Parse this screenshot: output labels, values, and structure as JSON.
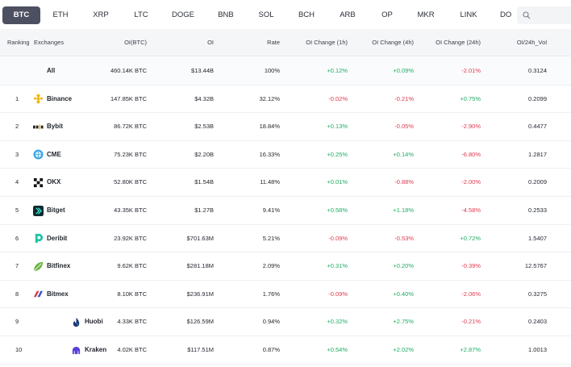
{
  "tabs": [
    {
      "label": "BTC",
      "active": true
    },
    {
      "label": "ETH"
    },
    {
      "label": "XRP"
    },
    {
      "label": "LTC"
    },
    {
      "label": "DOGE"
    },
    {
      "label": "BNB"
    },
    {
      "label": "SOL"
    },
    {
      "label": "BCH"
    },
    {
      "label": "ARB"
    },
    {
      "label": "OP"
    },
    {
      "label": "MKR"
    },
    {
      "label": "LINK"
    },
    {
      "label": "DO"
    }
  ],
  "search": {
    "icon": "search-icon"
  },
  "table": {
    "headers": {
      "ranking": "Ranking",
      "exchanges": "Exchanges",
      "oi_btc": "OI(BTC)",
      "oi": "OI",
      "rate": "Rate",
      "ch1h": "OI Change (1h)",
      "ch4h": "OI Change (4h)",
      "ch24h": "OI Change (24h)",
      "vol": "OI/24h_Vol"
    },
    "rows": [
      {
        "rank": "",
        "name": "All",
        "icon": "",
        "oi_btc": "460.14K BTC",
        "oi": "$13.44B",
        "rate": "100%",
        "ch1h": "+0.12%",
        "ch4h": "+0.09%",
        "ch24h": "-2.01%",
        "vol": "0.3124"
      },
      {
        "rank": "1",
        "name": "Binance",
        "icon": "binance-logo-icon",
        "oi_btc": "147.85K BTC",
        "oi": "$4.32B",
        "rate": "32.12%",
        "ch1h": "-0.02%",
        "ch4h": "-0.21%",
        "ch24h": "+0.75%",
        "vol": "0.2099"
      },
      {
        "rank": "2",
        "name": "Bybit",
        "icon": "bybit-logo-icon",
        "oi_btc": "86.72K BTC",
        "oi": "$2.53B",
        "rate": "18.84%",
        "ch1h": "+0.13%",
        "ch4h": "-0.05%",
        "ch24h": "-2.90%",
        "vol": "0.4477"
      },
      {
        "rank": "3",
        "name": "CME",
        "icon": "cme-logo-icon",
        "oi_btc": "75.23K BTC",
        "oi": "$2.20B",
        "rate": "16.33%",
        "ch1h": "+0.25%",
        "ch4h": "+0.14%",
        "ch24h": "-6.80%",
        "vol": "1.2817"
      },
      {
        "rank": "4",
        "name": "OKX",
        "icon": "okx-logo-icon",
        "oi_btc": "52.80K BTC",
        "oi": "$1.54B",
        "rate": "11.48%",
        "ch1h": "+0.01%",
        "ch4h": "-0.88%",
        "ch24h": "-2.00%",
        "vol": "0.2009"
      },
      {
        "rank": "5",
        "name": "Bitget",
        "icon": "bitget-logo-icon",
        "oi_btc": "43.35K BTC",
        "oi": "$1.27B",
        "rate": "9.41%",
        "ch1h": "+0.58%",
        "ch4h": "+1.18%",
        "ch24h": "-4.58%",
        "vol": "0.2533"
      },
      {
        "rank": "6",
        "name": "Deribit",
        "icon": "deribit-logo-icon",
        "oi_btc": "23.92K BTC",
        "oi": "$701.63M",
        "rate": "5.21%",
        "ch1h": "-0.09%",
        "ch4h": "-0.53%",
        "ch24h": "+0.72%",
        "vol": "1.5407"
      },
      {
        "rank": "7",
        "name": "Bitfinex",
        "icon": "bitfinex-logo-icon",
        "oi_btc": "9.62K BTC",
        "oi": "$281.18M",
        "rate": "2.09%",
        "ch1h": "+0.31%",
        "ch4h": "+0.20%",
        "ch24h": "-0.39%",
        "vol": "12.5767"
      },
      {
        "rank": "8",
        "name": "Bitmex",
        "icon": "bitmex-logo-icon",
        "oi_btc": "8.10K BTC",
        "oi": "$236.91M",
        "rate": "1.76%",
        "ch1h": "-0.09%",
        "ch4h": "+0.40%",
        "ch24h": "-2.06%",
        "vol": "0.3275"
      },
      {
        "rank": "9",
        "name": "Huobi",
        "icon": "huobi-logo-icon",
        "oi_btc": "4.33K BTC",
        "oi": "$126.59M",
        "rate": "0.94%",
        "ch1h": "+0.32%",
        "ch4h": "+2.75%",
        "ch24h": "-0.21%",
        "vol": "0.2403"
      },
      {
        "rank": "10",
        "name": "Kraken",
        "icon": "kraken-logo-icon",
        "oi_btc": "4.02K BTC",
        "oi": "$117.51M",
        "rate": "0.87%",
        "ch1h": "+0.54%",
        "ch4h": "+2.02%",
        "ch24h": "+2.87%",
        "vol": "1.0013"
      }
    ]
  },
  "colors": {
    "positive": "#1fad64",
    "negative": "#e0394e",
    "active_tab": "#4d5060"
  }
}
